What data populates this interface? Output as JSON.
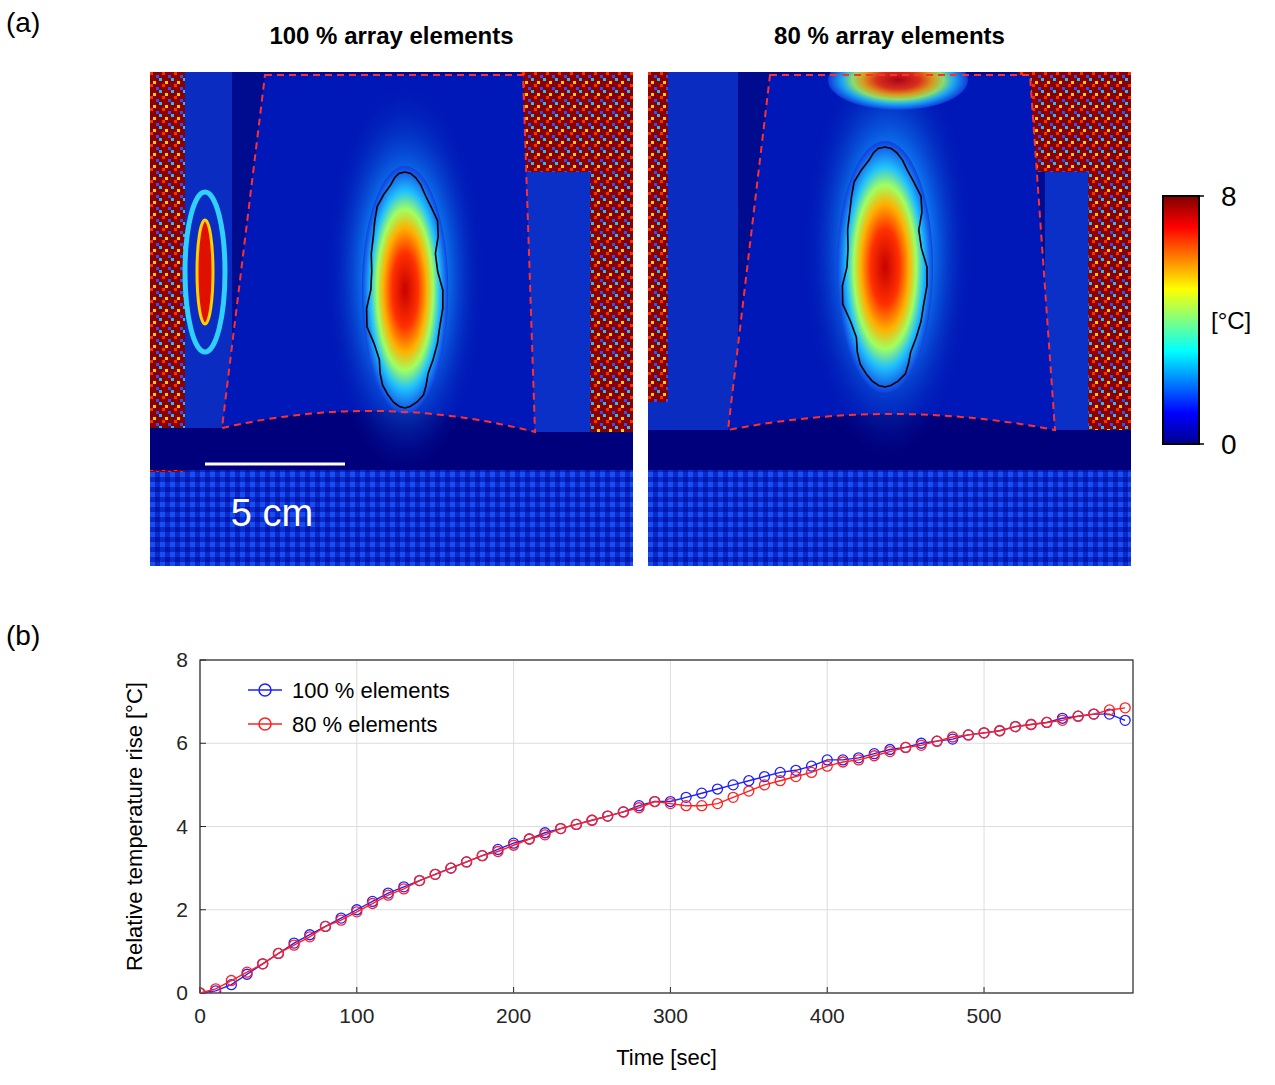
{
  "panel_labels": [
    "(a)",
    "(b)"
  ],
  "thermal_maps": {
    "panels": [
      {
        "title": "100 % array elements"
      },
      {
        "title": "80 % array elements"
      }
    ],
    "scale_bar": "5 cm",
    "colorbar": {
      "range": [
        0,
        8
      ],
      "ticks": [
        0,
        8
      ],
      "label": "[°C]"
    }
  },
  "chart_data": {
    "type": "line",
    "x_label": "Time [sec]",
    "y_label": "Relative temperature rise [°C]",
    "x": [
      0,
      10,
      20,
      30,
      40,
      50,
      60,
      70,
      80,
      90,
      100,
      110,
      120,
      130,
      140,
      150,
      160,
      170,
      180,
      190,
      200,
      210,
      220,
      230,
      240,
      250,
      260,
      270,
      280,
      290,
      300,
      310,
      320,
      330,
      340,
      350,
      360,
      370,
      380,
      390,
      400,
      410,
      420,
      430,
      440,
      450,
      460,
      470,
      480,
      490,
      500,
      510,
      520,
      530,
      540,
      550,
      560,
      570,
      580,
      590
    ],
    "xlim": [
      0,
      595
    ],
    "xticks": [
      0,
      100,
      200,
      300,
      400,
      500
    ],
    "ylim": [
      0,
      8
    ],
    "yticks": [
      0,
      2,
      4,
      6,
      8
    ],
    "grid": true,
    "legend": "upper-left",
    "marker": "circle-open",
    "line_style": "solid",
    "series": [
      {
        "name": "100 % elements",
        "color": "#1f1fff",
        "values": [
          0.0,
          0.05,
          0.2,
          0.45,
          0.7,
          0.95,
          1.2,
          1.4,
          1.6,
          1.8,
          2.0,
          2.2,
          2.4,
          2.55,
          2.7,
          2.85,
          3.0,
          3.15,
          3.3,
          3.45,
          3.6,
          3.7,
          3.85,
          3.95,
          4.05,
          4.15,
          4.25,
          4.35,
          4.5,
          4.6,
          4.6,
          4.7,
          4.8,
          4.9,
          5.0,
          5.1,
          5.2,
          5.3,
          5.35,
          5.45,
          5.6,
          5.6,
          5.65,
          5.75,
          5.85,
          5.9,
          6.0,
          6.05,
          6.1,
          6.2,
          6.25,
          6.3,
          6.4,
          6.45,
          6.5,
          6.6,
          6.65,
          6.7,
          6.7,
          6.55
        ]
      },
      {
        "name": "80 % elements",
        "color": "#ff2020",
        "values": [
          0.0,
          0.1,
          0.3,
          0.5,
          0.7,
          0.95,
          1.15,
          1.35,
          1.6,
          1.75,
          1.95,
          2.15,
          2.35,
          2.5,
          2.7,
          2.85,
          3.0,
          3.15,
          3.3,
          3.4,
          3.55,
          3.7,
          3.8,
          3.95,
          4.05,
          4.15,
          4.25,
          4.35,
          4.45,
          4.6,
          4.55,
          4.5,
          4.5,
          4.55,
          4.7,
          4.85,
          5.0,
          5.1,
          5.2,
          5.3,
          5.45,
          5.55,
          5.6,
          5.7,
          5.8,
          5.9,
          5.95,
          6.05,
          6.15,
          6.2,
          6.25,
          6.3,
          6.4,
          6.45,
          6.5,
          6.55,
          6.65,
          6.7,
          6.8,
          6.85
        ]
      }
    ]
  }
}
